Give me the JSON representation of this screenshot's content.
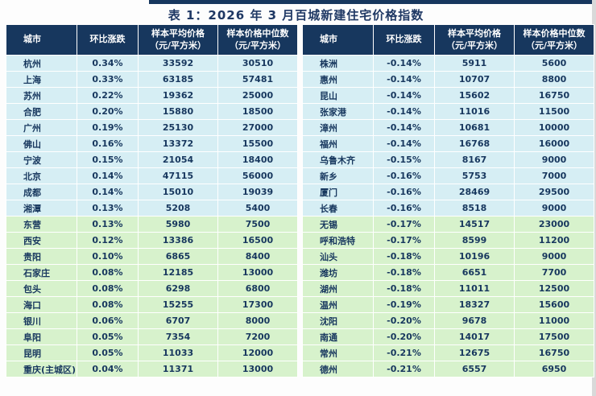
{
  "title": "表 1：2026 年 3 月百城新建住宅价格指数",
  "colors": {
    "header_bg": "#17375E",
    "header_text": "#FFFFFF",
    "row_blue": "#D6EEF4",
    "row_green": "#D7F2CC",
    "cell_text": "#17375E",
    "accent_bar": "#17375E",
    "title_text": "#1F3864"
  },
  "columns": [
    {
      "key": "city",
      "line1": "城市",
      "line2": ""
    },
    {
      "key": "change",
      "line1": "环比涨跌",
      "line2": ""
    },
    {
      "key": "avg",
      "line1": "样本平均价格",
      "line2": "（元/平方米）"
    },
    {
      "key": "median",
      "line1": "样本价格中位数",
      "line2": "（元/平方米）"
    }
  ],
  "left_rows": [
    {
      "city": "杭州",
      "change": "0.34%",
      "avg": "33592",
      "median": "30510",
      "group": "blue"
    },
    {
      "city": "上海",
      "change": "0.33%",
      "avg": "63185",
      "median": "57481",
      "group": "blue"
    },
    {
      "city": "苏州",
      "change": "0.22%",
      "avg": "19362",
      "median": "25000",
      "group": "blue"
    },
    {
      "city": "合肥",
      "change": "0.20%",
      "avg": "15880",
      "median": "18500",
      "group": "blue"
    },
    {
      "city": "广州",
      "change": "0.19%",
      "avg": "25130",
      "median": "27000",
      "group": "blue"
    },
    {
      "city": "佛山",
      "change": "0.16%",
      "avg": "13372",
      "median": "15500",
      "group": "blue"
    },
    {
      "city": "宁波",
      "change": "0.15%",
      "avg": "21054",
      "median": "18400",
      "group": "blue"
    },
    {
      "city": "北京",
      "change": "0.14%",
      "avg": "47115",
      "median": "56000",
      "group": "blue"
    },
    {
      "city": "成都",
      "change": "0.14%",
      "avg": "15010",
      "median": "19039",
      "group": "blue"
    },
    {
      "city": "湘潭",
      "change": "0.13%",
      "avg": "5208",
      "median": "5400",
      "group": "blue"
    },
    {
      "city": "东营",
      "change": "0.13%",
      "avg": "5980",
      "median": "7500",
      "group": "green"
    },
    {
      "city": "西安",
      "change": "0.12%",
      "avg": "13386",
      "median": "16500",
      "group": "green"
    },
    {
      "city": "贵阳",
      "change": "0.10%",
      "avg": "6865",
      "median": "8400",
      "group": "green"
    },
    {
      "city": "石家庄",
      "change": "0.08%",
      "avg": "12185",
      "median": "13000",
      "group": "green"
    },
    {
      "city": "包头",
      "change": "0.08%",
      "avg": "6298",
      "median": "6800",
      "group": "green"
    },
    {
      "city": "海口",
      "change": "0.08%",
      "avg": "15255",
      "median": "17300",
      "group": "green"
    },
    {
      "city": "银川",
      "change": "0.06%",
      "avg": "6707",
      "median": "8000",
      "group": "green"
    },
    {
      "city": "阜阳",
      "change": "0.05%",
      "avg": "7354",
      "median": "7200",
      "group": "green"
    },
    {
      "city": "昆明",
      "change": "0.05%",
      "avg": "11033",
      "median": "12000",
      "group": "green"
    },
    {
      "city": "重庆(主城区)",
      "change": "0.04%",
      "avg": "11371",
      "median": "13000",
      "group": "green"
    }
  ],
  "right_rows": [
    {
      "city": "株洲",
      "change": "-0.14%",
      "avg": "5911",
      "median": "5600",
      "group": "blue"
    },
    {
      "city": "惠州",
      "change": "-0.14%",
      "avg": "10707",
      "median": "8800",
      "group": "blue"
    },
    {
      "city": "昆山",
      "change": "-0.14%",
      "avg": "15602",
      "median": "16750",
      "group": "blue"
    },
    {
      "city": "张家港",
      "change": "-0.14%",
      "avg": "11016",
      "median": "11500",
      "group": "blue"
    },
    {
      "city": "漳州",
      "change": "-0.14%",
      "avg": "10681",
      "median": "10000",
      "group": "blue"
    },
    {
      "city": "福州",
      "change": "-0.14%",
      "avg": "16768",
      "median": "16000",
      "group": "blue"
    },
    {
      "city": "乌鲁木齐",
      "change": "-0.15%",
      "avg": "8167",
      "median": "9000",
      "group": "blue"
    },
    {
      "city": "新乡",
      "change": "-0.16%",
      "avg": "5753",
      "median": "7000",
      "group": "blue"
    },
    {
      "city": "厦门",
      "change": "-0.16%",
      "avg": "28469",
      "median": "29500",
      "group": "blue"
    },
    {
      "city": "长春",
      "change": "-0.16%",
      "avg": "8518",
      "median": "9000",
      "group": "blue"
    },
    {
      "city": "无锡",
      "change": "-0.17%",
      "avg": "14517",
      "median": "23000",
      "group": "green"
    },
    {
      "city": "呼和浩特",
      "change": "-0.17%",
      "avg": "8599",
      "median": "11200",
      "group": "green"
    },
    {
      "city": "汕头",
      "change": "-0.18%",
      "avg": "10196",
      "median": "9000",
      "group": "green"
    },
    {
      "city": "潍坊",
      "change": "-0.18%",
      "avg": "6651",
      "median": "7700",
      "group": "green"
    },
    {
      "city": "湖州",
      "change": "-0.18%",
      "avg": "11011",
      "median": "12500",
      "group": "green"
    },
    {
      "city": "温州",
      "change": "-0.19%",
      "avg": "18327",
      "median": "15600",
      "group": "green"
    },
    {
      "city": "沈阳",
      "change": "-0.20%",
      "avg": "9678",
      "median": "11000",
      "group": "green"
    },
    {
      "city": "南通",
      "change": "-0.20%",
      "avg": "14017",
      "median": "17500",
      "group": "green"
    },
    {
      "city": "常州",
      "change": "-0.21%",
      "avg": "12675",
      "median": "16750",
      "group": "green"
    },
    {
      "city": "德州",
      "change": "-0.21%",
      "avg": "6557",
      "median": "6950",
      "group": "green"
    }
  ]
}
